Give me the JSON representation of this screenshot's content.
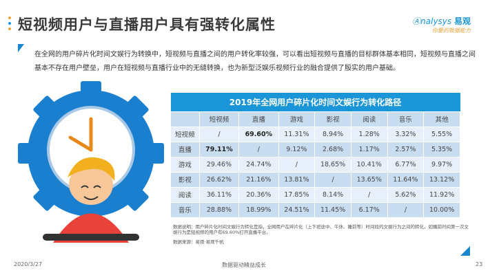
{
  "title": "短视频用户与直播用户具有强转化属性",
  "logo": {
    "brand": "nalysys",
    "brand_cn": "易观",
    "slogan": "你要的数据能力"
  },
  "intro": "在全网的用户碎片化时间文娱行为转换中，短视频与直播之间的用户转化率较强，可以看出短视频与直播的目标群体基本相同，短视频与直播之间基本不存在用户壁垒，用户在短视频与直播行业中的无缝转换，也为新型泛娱乐视频行业的融合提供了殷实的用户基础。",
  "table": {
    "caption": "2019年全网用户碎片化时间文娱行为转化路径",
    "columns": [
      "",
      "短视频",
      "直播",
      "游戏",
      "影视",
      "阅读",
      "音乐",
      "其他"
    ],
    "rows": [
      [
        "短视频",
        "/",
        "69.60%",
        "11.31%",
        "8.94%",
        "1.28%",
        "3.32%",
        "5.55%"
      ],
      [
        "直播",
        "79.11%",
        "/",
        "9.12%",
        "2.68%",
        "1.17%",
        "2.57%",
        "5.35%"
      ],
      [
        "游戏",
        "29.46%",
        "24.74%",
        "/",
        "18.65%",
        "10.41%",
        "6.77%",
        "9.97%"
      ],
      [
        "影视",
        "26.62%",
        "21.16%",
        "13.81%",
        "/",
        "13.65%",
        "11.64%",
        "13.12%"
      ],
      [
        "阅读",
        "36.11%",
        "20.36%",
        "17.85%",
        "8.14%",
        "/",
        "5.62%",
        "11.92%"
      ],
      [
        "音乐",
        "28.88%",
        "18.99%",
        "24.51%",
        "11.45%",
        "6.17%",
        "/",
        "10.00%"
      ]
    ],
    "highlight": [
      "69.60%",
      "79.11%"
    ]
  },
  "note": "数据说明：用户碎片化时间文娱行为转化是指，全网用户在碎片化（上下班途中、午休、睡前等）时间段的文娱行为之间的转化，如播前时间第一次文娱行为是短视频的用户有69.60%打开直播平台。",
  "source": "数据来源：易观·易观千帆",
  "footer": {
    "date": "2020/3/27",
    "center": "数据驱动精益成长",
    "page": "23"
  },
  "colors": {
    "accent": "#1a96d8",
    "gear": "#1a7fcf",
    "dots": [
      "#e8a33c",
      "#1a96d8",
      "#e8a33c"
    ]
  }
}
